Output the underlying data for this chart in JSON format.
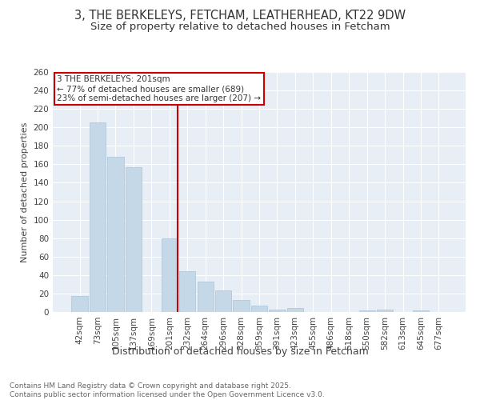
{
  "title": "3, THE BERKELEYS, FETCHAM, LEATHERHEAD, KT22 9DW",
  "subtitle": "Size of property relative to detached houses in Fetcham",
  "xlabel": "Distribution of detached houses by size in Fetcham",
  "ylabel": "Number of detached properties",
  "categories": [
    "42sqm",
    "73sqm",
    "105sqm",
    "137sqm",
    "169sqm",
    "201sqm",
    "232sqm",
    "264sqm",
    "296sqm",
    "328sqm",
    "359sqm",
    "391sqm",
    "423sqm",
    "455sqm",
    "486sqm",
    "518sqm",
    "550sqm",
    "582sqm",
    "613sqm",
    "645sqm",
    "677sqm"
  ],
  "values": [
    17,
    205,
    168,
    157,
    0,
    80,
    44,
    33,
    23,
    13,
    7,
    3,
    4,
    0,
    0,
    0,
    2,
    3,
    0,
    2,
    0
  ],
  "bar_color": "#c5d8e8",
  "bar_edge_color": "#a8c4d8",
  "vline_idx": 5,
  "vline_color": "#cc0000",
  "annotation_line1": "3 THE BERKELEYS: 201sqm",
  "annotation_line2": "← 77% of detached houses are smaller (689)",
  "annotation_line3": "23% of semi-detached houses are larger (207) →",
  "annotation_box_color": "#cc0000",
  "annotation_box_bg": "#ffffff",
  "ylim": [
    0,
    260
  ],
  "yticks": [
    0,
    20,
    40,
    60,
    80,
    100,
    120,
    140,
    160,
    180,
    200,
    220,
    240,
    260
  ],
  "bg_color": "#e8eef5",
  "grid_color": "#ffffff",
  "footer_text": "Contains HM Land Registry data © Crown copyright and database right 2025.\nContains public sector information licensed under the Open Government Licence v3.0.",
  "title_fontsize": 10.5,
  "subtitle_fontsize": 9.5,
  "xlabel_fontsize": 9,
  "ylabel_fontsize": 8,
  "tick_fontsize": 7.5,
  "annotation_fontsize": 7.5,
  "footer_fontsize": 6.5
}
